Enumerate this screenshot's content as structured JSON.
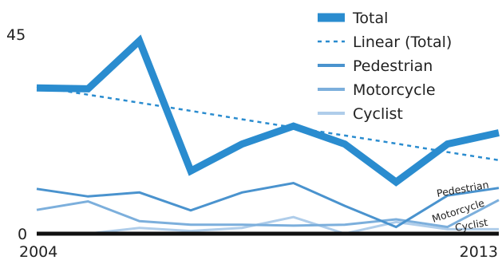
{
  "chart_data": {
    "type": "line",
    "x": [
      2004,
      2005,
      2006,
      2007,
      2008,
      2009,
      2010,
      2011,
      2012,
      2013
    ],
    "x_tick_labels": [
      "2004",
      "2013"
    ],
    "ylim": [
      0,
      45
    ],
    "y_tick_labels": [
      "0",
      "45"
    ],
    "grid": false,
    "legend_position": "top-right",
    "series": [
      {
        "name": "Total",
        "values": [
          32.5,
          32.3,
          43,
          14,
          20,
          24,
          20,
          11.5,
          20,
          22.5
        ],
        "color": "#2A8CCF",
        "style": "thick-solid"
      },
      {
        "name": "Linear (Total)",
        "values": [
          32.8,
          31,
          29.2,
          27.4,
          25.5,
          23.7,
          21.9,
          20.1,
          18.2,
          16.4
        ],
        "color": "#2A8CCF",
        "style": "dashed"
      },
      {
        "name": "Pedestrian",
        "values": [
          10,
          8.3,
          9.2,
          5.2,
          9.2,
          11.3,
          6.2,
          1.5,
          8.5,
          10.2
        ],
        "color": "#4A93CE",
        "style": "solid"
      },
      {
        "name": "Motorcycle",
        "values": [
          5.3,
          7.2,
          2.8,
          2,
          2,
          1.8,
          2,
          3.2,
          1.5,
          7.5
        ],
        "color": "#7CAFDC",
        "style": "solid"
      },
      {
        "name": "Cyclist",
        "values": [
          0,
          0,
          1.3,
          0.6,
          1.3,
          3.7,
          0,
          2.6,
          1,
          1
        ],
        "color": "#AFCDEA",
        "style": "solid"
      }
    ],
    "inline_labels": [
      "Pedestrian",
      "Motorcycle",
      "Cyclist"
    ]
  }
}
